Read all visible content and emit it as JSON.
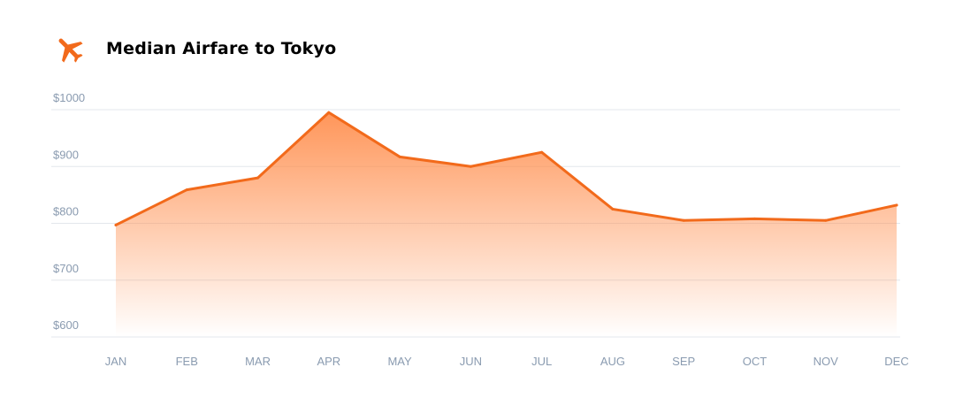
{
  "header": {
    "title": "Median Airfare to Tokyo",
    "icon": "airplane-icon"
  },
  "colors": {
    "accent": "#f26a1b",
    "fill_top": "#ff8a47",
    "grid": "#e3e7ec",
    "tick_text": "#8a9bb0",
    "title_text": "#000000"
  },
  "chart_data": {
    "type": "area",
    "categories": [
      "JAN",
      "FEB",
      "MAR",
      "APR",
      "MAY",
      "JUN",
      "JUL",
      "AUG",
      "SEP",
      "OCT",
      "NOV",
      "DEC"
    ],
    "values": [
      797,
      859,
      880,
      995,
      917,
      900,
      925,
      825,
      805,
      808,
      805,
      832
    ],
    "y_ticks": [
      1000,
      900,
      800,
      700,
      600
    ],
    "y_tick_labels": [
      "$1000",
      "$900",
      "$800",
      "$700",
      "$600"
    ],
    "ylim": [
      600,
      1000
    ],
    "grid": true,
    "legend": "none"
  }
}
